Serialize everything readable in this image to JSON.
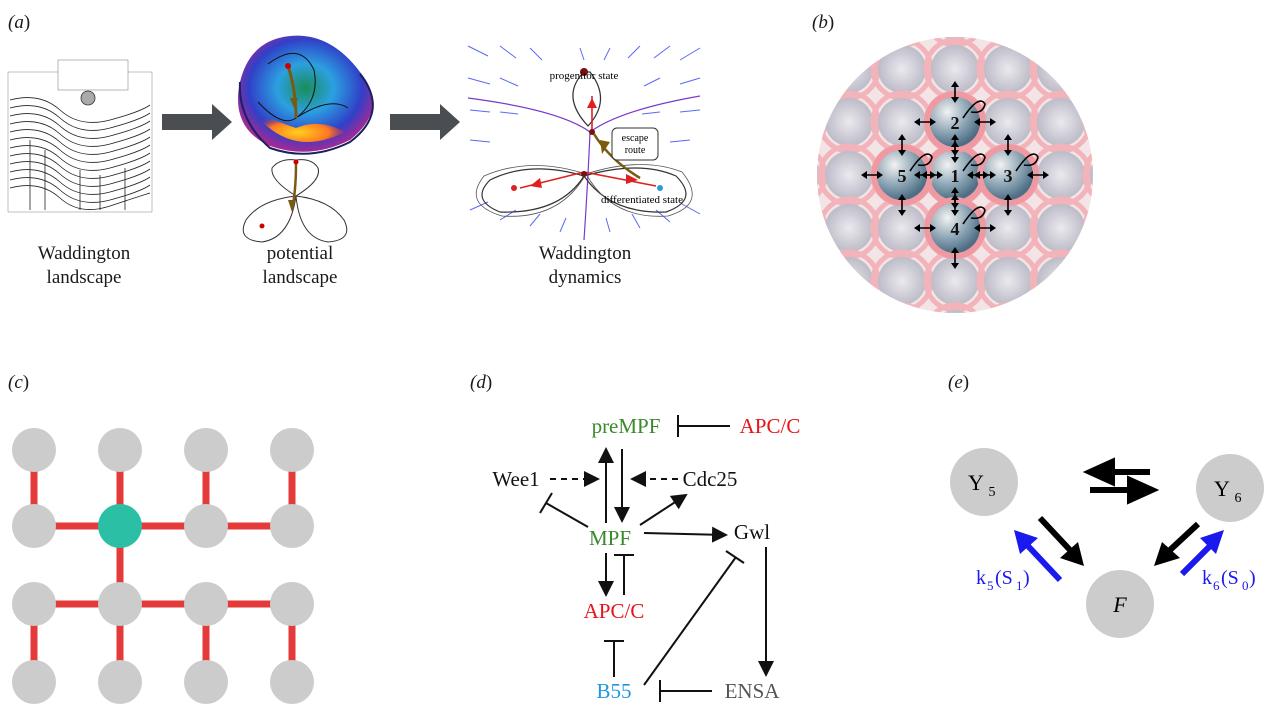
{
  "panels": {
    "a": {
      "label": "a",
      "captions": {
        "waddington_landscape": [
          "Waddington",
          "landscape"
        ],
        "potential_landscape": [
          "potential",
          "landscape"
        ],
        "waddington_dynamics": [
          "Waddington",
          "dynamics"
        ]
      },
      "annotations": {
        "progenitor": "progenitor state",
        "escape": [
          "escape",
          "route"
        ],
        "differentiated": "differentiated state"
      }
    },
    "b": {
      "label": "b",
      "cell_numbers": [
        "1",
        "2",
        "3",
        "4",
        "5"
      ]
    },
    "c": {
      "label": "c"
    },
    "d": {
      "label": "d",
      "nodes": {
        "premf": "preMPF",
        "apc_top": "APC/C",
        "wee1": "Wee1",
        "cdc25": "Cdc25",
        "mpf": "MPF",
        "gwl": "Gwl",
        "apc": "APC/C",
        "b55": "B55",
        "ensa": "ENSA"
      }
    },
    "e": {
      "label": "e",
      "nodes": {
        "y5_main": "Y",
        "y5_sub": "5",
        "y6_main": "Y",
        "y6_sub": "6",
        "f": "F"
      },
      "rates": {
        "k5": "k",
        "k5_sub": "5",
        "k5_arg": "(S",
        "k5_arg_sub": "1",
        "k5_close": ")",
        "k6": "k",
        "k6_sub": "6",
        "k6_arg": "(S",
        "k6_arg_sub": "0",
        "k6_close": ")"
      }
    }
  },
  "colors": {
    "green": "#3a8a2c",
    "red": "#e8131b",
    "blue55": "#2196e0",
    "grayText": "#555555",
    "gridRed": "#e53a3a",
    "teal": "#2bbfa6",
    "nodeGray": "#cccccc",
    "rateBlue": "#1a1aee"
  }
}
